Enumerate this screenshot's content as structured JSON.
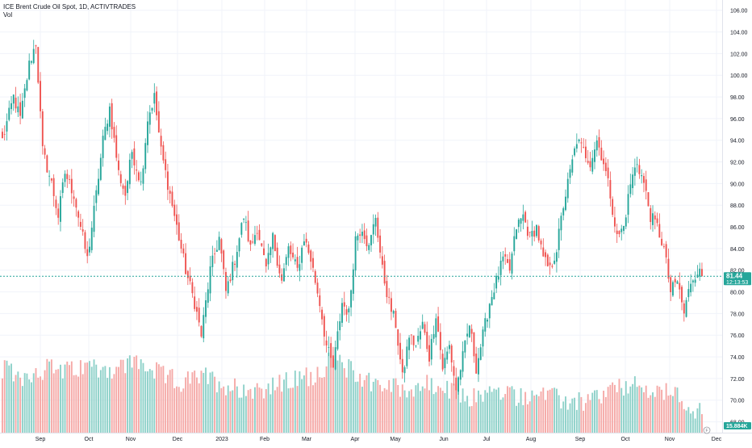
{
  "header": {
    "symbol_line": "ICE Brent Crude Oil Spot, 1D, ACTIVTRADES",
    "volume_label": "Vol"
  },
  "chart_data": {
    "type": "candlestick",
    "title": "ICE Brent Crude Oil Spot, 1D, ACTIVTRADES",
    "grid": true,
    "ylim": [
      67,
      106.8
    ],
    "price_ticks": [
      "106.00",
      "104.00",
      "102.00",
      "100.00",
      "98.00",
      "96.00",
      "94.00",
      "92.00",
      "90.00",
      "88.00",
      "86.00",
      "84.00",
      "82.00",
      "80.00",
      "78.00",
      "76.00",
      "74.00",
      "72.00",
      "70.00",
      "68.00"
    ],
    "month_labels": [
      "Sep",
      "Oct",
      "Nov",
      "Dec",
      "2023",
      "Feb",
      "Mar",
      "Apr",
      "May",
      "Jun",
      "Jul",
      "Aug",
      "Sep",
      "Oct",
      "Nov",
      "Dec"
    ],
    "anchors": [
      [
        0,
        94
      ],
      [
        5,
        98
      ],
      [
        8,
        96
      ],
      [
        12,
        101
      ],
      [
        15,
        103
      ],
      [
        18,
        93
      ],
      [
        22,
        90
      ],
      [
        25,
        87
      ],
      [
        28,
        91
      ],
      [
        32,
        89
      ],
      [
        35,
        86
      ],
      [
        38,
        83
      ],
      [
        42,
        89
      ],
      [
        45,
        94
      ],
      [
        48,
        97
      ],
      [
        52,
        91
      ],
      [
        55,
        89
      ],
      [
        58,
        93
      ],
      [
        62,
        90
      ],
      [
        65,
        96
      ],
      [
        68,
        98
      ],
      [
        71,
        93
      ],
      [
        75,
        89
      ],
      [
        78,
        86
      ],
      [
        82,
        82
      ],
      [
        86,
        79
      ],
      [
        89,
        76
      ],
      [
        93,
        82
      ],
      [
        97,
        85
      ],
      [
        100,
        80
      ],
      [
        104,
        83
      ],
      [
        108,
        87
      ],
      [
        111,
        84
      ],
      [
        114,
        86
      ],
      [
        118,
        82
      ],
      [
        121,
        85
      ],
      [
        125,
        81
      ],
      [
        128,
        84
      ],
      [
        132,
        82
      ],
      [
        135,
        85
      ],
      [
        138,
        83
      ],
      [
        142,
        79
      ],
      [
        145,
        75
      ],
      [
        148,
        73
      ],
      [
        152,
        79
      ],
      [
        155,
        78
      ],
      [
        158,
        85
      ],
      [
        161,
        86
      ],
      [
        164,
        84
      ],
      [
        167,
        87
      ],
      [
        170,
        82
      ],
      [
        173,
        79
      ],
      [
        176,
        77
      ],
      [
        179,
        72
      ],
      [
        182,
        76
      ],
      [
        185,
        75
      ],
      [
        188,
        77
      ],
      [
        191,
        74
      ],
      [
        194,
        78
      ],
      [
        197,
        73
      ],
      [
        200,
        75
      ],
      [
        203,
        71
      ],
      [
        206,
        74
      ],
      [
        209,
        77
      ],
      [
        212,
        73
      ],
      [
        215,
        76
      ],
      [
        218,
        79
      ],
      [
        221,
        81
      ],
      [
        224,
        83
      ],
      [
        227,
        82
      ],
      [
        230,
        86
      ],
      [
        233,
        87
      ],
      [
        236,
        85
      ],
      [
        239,
        86
      ],
      [
        242,
        83
      ],
      [
        245,
        82
      ],
      [
        248,
        84
      ],
      [
        251,
        88
      ],
      [
        254,
        91
      ],
      [
        257,
        94
      ],
      [
        260,
        93
      ],
      [
        263,
        92
      ],
      [
        266,
        94
      ],
      [
        269,
        92
      ],
      [
        272,
        89
      ],
      [
        275,
        85
      ],
      [
        278,
        86
      ],
      [
        281,
        90
      ],
      [
        284,
        92
      ],
      [
        287,
        90
      ],
      [
        290,
        87
      ],
      [
        293,
        86
      ],
      [
        296,
        84
      ],
      [
        299,
        80
      ],
      [
        302,
        81
      ],
      [
        305,
        78
      ],
      [
        308,
        81
      ],
      [
        311,
        82
      ],
      [
        313,
        81.44
      ]
    ],
    "vol_anchors": [
      [
        0,
        5.8
      ],
      [
        10,
        5.2
      ],
      [
        20,
        6.0
      ],
      [
        30,
        5.6
      ],
      [
        40,
        6.2
      ],
      [
        50,
        5.8
      ],
      [
        60,
        6.6
      ],
      [
        70,
        5.4
      ],
      [
        80,
        4.6
      ],
      [
        90,
        5.2
      ],
      [
        100,
        4.4
      ],
      [
        110,
        4.0
      ],
      [
        120,
        4.2
      ],
      [
        130,
        4.8
      ],
      [
        140,
        5.4
      ],
      [
        148,
        6.8
      ],
      [
        160,
        5.2
      ],
      [
        170,
        4.4
      ],
      [
        180,
        4.0
      ],
      [
        190,
        4.4
      ],
      [
        200,
        3.8
      ],
      [
        210,
        3.2
      ],
      [
        220,
        3.8
      ],
      [
        230,
        3.4
      ],
      [
        240,
        3.6
      ],
      [
        250,
        3.0
      ],
      [
        260,
        2.8
      ],
      [
        270,
        3.6
      ],
      [
        280,
        4.4
      ],
      [
        290,
        3.8
      ],
      [
        300,
        3.6
      ],
      [
        313,
        1.8
      ]
    ],
    "current_price": "81.44",
    "countdown": "12:13:53",
    "current_volume": "15.884K",
    "colors": {
      "up": "#26a69a",
      "down": "#ef5350",
      "volume_up": "#8ed1c9",
      "volume_down": "#f5a9a7",
      "grid": "#f0f3fa",
      "axis_text": "#131722",
      "price_line": "#26a69a",
      "badge_price": "#26a69a",
      "badge_volume": "#26a69a"
    }
  }
}
